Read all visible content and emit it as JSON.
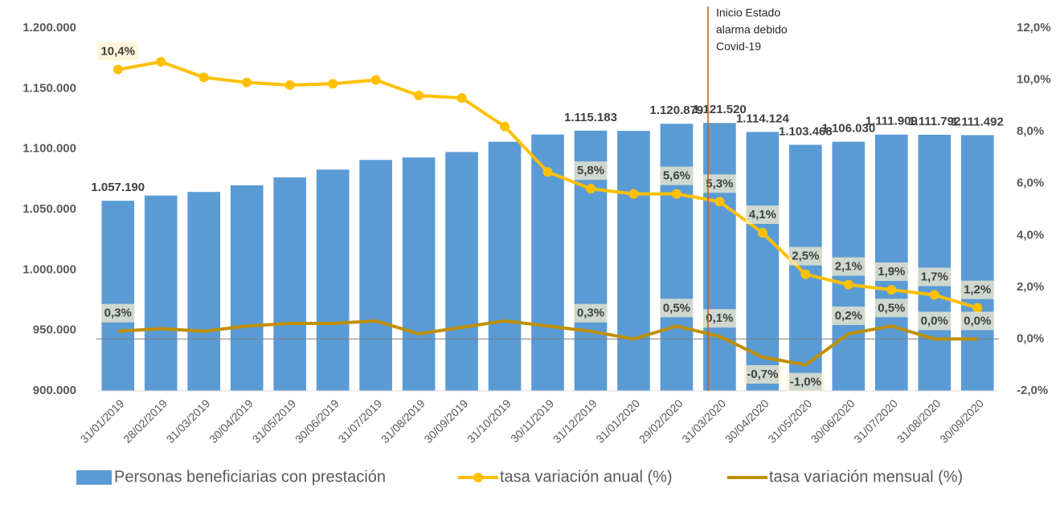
{
  "chart_data": {
    "type": "bar_line",
    "categories": [
      "31/01/2019",
      "28/02/2019",
      "31/03/2019",
      "30/04/2019",
      "31/05/2019",
      "30/06/2019",
      "31/07/2019",
      "31/08/2019",
      "30/09/2019",
      "31/10/2019",
      "30/11/2019",
      "31/12/2019",
      "31/01/2020",
      "29/02/2020",
      "31/03/2020",
      "30/04/2020",
      "31/05/2020",
      "30/06/2020",
      "31/07/2020",
      "31/08/2020",
      "30/09/2020"
    ],
    "series": [
      {
        "name": "Personas beneficiarias con prestación",
        "type": "bar",
        "axis": "y",
        "color": "#5b9bd5",
        "values": [
          1057190,
          1061500,
          1064500,
          1070000,
          1076500,
          1083000,
          1091000,
          1093000,
          1097500,
          1106000,
          1112000,
          1115183,
          1115000,
          1120879,
          1121520,
          1114124,
          1103468,
          1106030,
          1111909,
          1111792,
          1111492
        ],
        "value_labels": [
          "1.057.190",
          null,
          null,
          null,
          null,
          null,
          null,
          null,
          null,
          null,
          null,
          "1.115.183",
          null,
          "1.120.879",
          "1.121.520",
          "1.114.124",
          "1.103.468",
          "1.106.030",
          "1.111.909",
          "1.111.792",
          "1.111.492"
        ]
      },
      {
        "name": "tasa variación anual (%)",
        "type": "line",
        "axis": "y2",
        "color": "#ffc000",
        "markers": true,
        "values": [
          10.4,
          10.7,
          10.1,
          9.9,
          9.8,
          9.85,
          10.0,
          9.4,
          9.3,
          8.2,
          6.45,
          5.8,
          5.6,
          5.6,
          5.3,
          4.1,
          2.5,
          2.1,
          1.9,
          1.7,
          1.2
        ],
        "value_labels": [
          "10,4%",
          null,
          null,
          null,
          null,
          null,
          null,
          null,
          null,
          null,
          null,
          "5,8%",
          null,
          "5,6%",
          "5,3%",
          "4,1%",
          "2,5%",
          "2,1%",
          "1,9%",
          "1,7%",
          "1,2%"
        ]
      },
      {
        "name": "tasa variación mensual (%)",
        "type": "line",
        "axis": "y2",
        "color": "#bf9000",
        "markers": false,
        "values": [
          0.3,
          0.4,
          0.3,
          0.5,
          0.6,
          0.6,
          0.7,
          0.2,
          0.45,
          0.7,
          0.5,
          0.3,
          0.0,
          0.5,
          0.1,
          -0.7,
          -1.0,
          0.2,
          0.5,
          0.0,
          0.0
        ],
        "value_labels": [
          "0,3%",
          null,
          null,
          null,
          null,
          null,
          null,
          null,
          null,
          null,
          null,
          "0,3%",
          null,
          "0,5%",
          "0,1%",
          "-0,7%",
          "-1,0%",
          "0,2%",
          "0,5%",
          "0,0%",
          "0,0%"
        ]
      }
    ],
    "ylim": [
      900000,
      1200000
    ],
    "yticks": [
      {
        "value": 900000,
        "label": "900.000"
      },
      {
        "value": 950000,
        "label": "950.000"
      },
      {
        "value": 1000000,
        "label": "1.000.000"
      },
      {
        "value": 1050000,
        "label": "1.050.000"
      },
      {
        "value": 1100000,
        "label": "1.100.000"
      },
      {
        "value": 1150000,
        "label": "1.150.000"
      },
      {
        "value": 1200000,
        "label": "1.200.000"
      }
    ],
    "y2lim": [
      -2,
      12
    ],
    "y2ticks": [
      {
        "value": -2,
        "label": "-2,0%"
      },
      {
        "value": 0,
        "label": "0,0%"
      },
      {
        "value": 2,
        "label": "2,0%"
      },
      {
        "value": 4,
        "label": "4,0%"
      },
      {
        "value": 6,
        "label": "6,0%"
      },
      {
        "value": 8,
        "label": "8,0%"
      },
      {
        "value": 10,
        "label": "10,0%"
      },
      {
        "value": 12,
        "label": "12,0%"
      }
    ],
    "annotation": {
      "text": [
        "Inicio Estado",
        "alarma debido",
        "Covid-19"
      ],
      "category": 14
    },
    "legend": "bottom"
  }
}
